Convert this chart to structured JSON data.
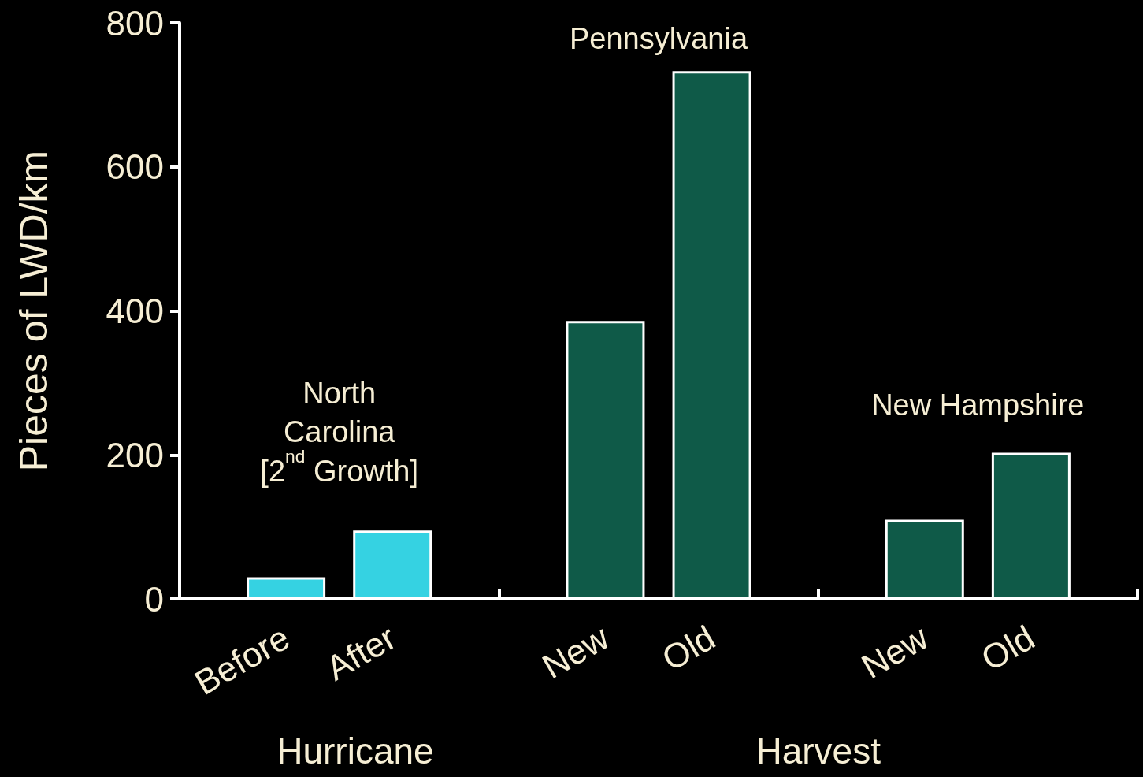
{
  "chart_data": {
    "type": "bar",
    "ylabel": "Pieces of LWD/km",
    "categories": [
      null,
      "Before",
      "After",
      null,
      "New",
      "Old",
      null,
      "New",
      "Old",
      null
    ],
    "values": [
      null,
      30,
      95,
      null,
      386,
      733,
      null,
      110,
      203,
      null
    ],
    "colors": [
      "#0f5a48",
      "#35d2e2",
      "#35d2e2",
      "#0f5a48",
      "#0f5a48",
      "#0f5a48",
      "#0f5a48",
      "#0f5a48",
      "#0f5a48",
      "#0f5a48"
    ],
    "ylim": [
      0,
      800
    ],
    "yticks": [
      0,
      200,
      400,
      600,
      800
    ],
    "grid": false,
    "annotations": [
      "North\nCarolina\n[2$^{nd}$ Growth]",
      "Pennsylvania",
      "New Hampshire",
      "Hurricane",
      "Harvest"
    ]
  }
}
